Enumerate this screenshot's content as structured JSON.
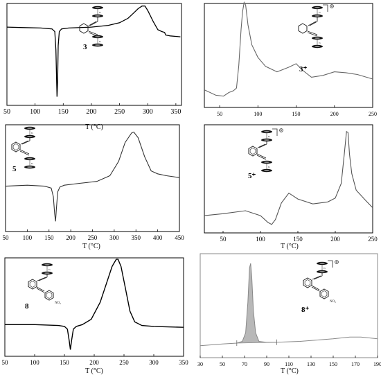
{
  "chart_data": [
    {
      "type": "line",
      "compound_label": "3",
      "xlabel": "T (°C)",
      "xlim": [
        50,
        360
      ],
      "xticks": [
        50,
        100,
        150,
        200,
        250,
        300,
        350
      ],
      "x": [
        50,
        80,
        110,
        130,
        135,
        137,
        139,
        140,
        141,
        143,
        147,
        160,
        200,
        230,
        250,
        265,
        275,
        283,
        290,
        295,
        300,
        310,
        318,
        325,
        330,
        332,
        340,
        358
      ],
      "y": [
        0.81,
        0.805,
        0.8,
        0.79,
        0.76,
        0.55,
        0.02,
        0.2,
        0.6,
        0.76,
        0.79,
        0.8,
        0.81,
        0.83,
        0.86,
        0.91,
        0.97,
        1.02,
        1.05,
        1.05,
        1.0,
        0.87,
        0.78,
        0.76,
        0.75,
        0.72,
        0.71,
        0.7
      ]
    },
    {
      "type": "line",
      "compound_label": "3⁺",
      "xlabel": "T (°C)",
      "xlim": [
        30,
        250
      ],
      "xticks": [
        50,
        100,
        150,
        200,
        250
      ],
      "x": [
        30,
        45,
        55,
        62,
        68,
        72,
        75,
        78,
        80,
        82,
        84,
        87,
        92,
        100,
        110,
        125,
        140,
        150,
        158,
        170,
        185,
        200,
        215,
        230,
        250
      ],
      "y": [
        0.08,
        0.02,
        0.01,
        0.05,
        0.07,
        0.1,
        0.35,
        0.75,
        0.95,
        1.05,
        1.02,
        0.8,
        0.58,
        0.44,
        0.34,
        0.28,
        0.33,
        0.37,
        0.3,
        0.22,
        0.24,
        0.28,
        0.27,
        0.25,
        0.2
      ]
    },
    {
      "type": "line",
      "compound_label": "5",
      "xlabel": "T (°C)",
      "xlim": [
        50,
        450
      ],
      "xticks": [
        50,
        100,
        150,
        200,
        250,
        300,
        350,
        400,
        450
      ],
      "x": [
        50,
        100,
        140,
        155,
        160,
        163,
        165,
        167,
        170,
        175,
        185,
        220,
        260,
        290,
        310,
        325,
        340,
        345,
        355,
        370,
        385,
        400,
        420,
        450
      ],
      "y": [
        0.39,
        0.4,
        0.39,
        0.37,
        0.28,
        0.1,
        0.02,
        0.15,
        0.33,
        0.38,
        0.4,
        0.42,
        0.44,
        0.5,
        0.65,
        0.85,
        0.95,
        0.96,
        0.9,
        0.7,
        0.55,
        0.52,
        0.5,
        0.48
      ]
    },
    {
      "type": "line",
      "compound_label": "5⁺",
      "xlabel": "T (°C)",
      "xlim": [
        25,
        250
      ],
      "xticks": [
        50,
        100,
        150,
        200,
        250
      ],
      "x": [
        25,
        50,
        80,
        100,
        110,
        115,
        120,
        128,
        138,
        150,
        170,
        190,
        200,
        208,
        212,
        215,
        217,
        219,
        222,
        228,
        240,
        250
      ],
      "y": [
        0.12,
        0.14,
        0.17,
        0.12,
        0.05,
        0.03,
        0.08,
        0.25,
        0.35,
        0.29,
        0.24,
        0.26,
        0.3,
        0.45,
        0.75,
        0.98,
        0.97,
        0.75,
        0.55,
        0.38,
        0.28,
        0.2
      ]
    },
    {
      "type": "line",
      "compound_label": "8",
      "xlabel": "T (°C)",
      "xlim": [
        50,
        350
      ],
      "xticks": [
        50,
        100,
        150,
        200,
        250,
        300,
        350
      ],
      "x": [
        50,
        100,
        140,
        150,
        155,
        158,
        160,
        162,
        165,
        170,
        180,
        195,
        210,
        220,
        230,
        237,
        240,
        245,
        252,
        260,
        268,
        280,
        300,
        350
      ],
      "y": [
        0.3,
        0.3,
        0.29,
        0.28,
        0.25,
        0.12,
        0.02,
        0.12,
        0.25,
        0.28,
        0.3,
        0.36,
        0.55,
        0.75,
        0.95,
        1.03,
        1.03,
        0.95,
        0.72,
        0.45,
        0.33,
        0.29,
        0.28,
        0.27
      ]
    },
    {
      "type": "area",
      "compound_label": "8⁺",
      "xlabel": "T (°C)",
      "xlim": [
        30,
        190
      ],
      "xticks": [
        30,
        50,
        70,
        90,
        110,
        130,
        150,
        170,
        190
      ],
      "x": [
        30,
        50,
        63,
        68,
        71,
        73,
        74.5,
        75.5,
        76.5,
        78,
        80,
        83,
        90,
        99,
        120,
        150,
        165,
        175,
        190
      ],
      "y": [
        0.05,
        0.07,
        0.08,
        0.1,
        0.2,
        0.55,
        0.95,
        1.0,
        0.85,
        0.45,
        0.2,
        0.1,
        0.09,
        0.09,
        0.1,
        0.13,
        0.15,
        0.15,
        0.13
      ],
      "shaded_x_range": [
        63,
        99
      ]
    }
  ]
}
